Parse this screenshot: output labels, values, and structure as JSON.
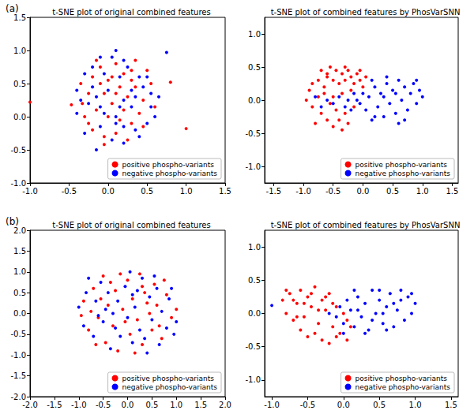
{
  "chart_data": [
    {
      "type": "scatter",
      "annotation": "(a)",
      "title": "t-SNE plot of original combined features",
      "xlim": [
        -1,
        1.5
      ],
      "xticks": [
        {
          "value": -1,
          "label": "-1.0"
        },
        -0.5,
        {
          "value": 0,
          "label": "0.0"
        },
        0.5,
        {
          "value": 1,
          "label": "1.0"
        },
        1.5
      ],
      "ylim": [
        -1,
        1.5
      ],
      "yticks": [
        {
          "value": -1,
          "label": "-1.0"
        },
        -0.5,
        {
          "value": 0,
          "label": "0.0"
        },
        0.5,
        {
          "value": 1,
          "label": "1.0"
        },
        1.5
      ],
      "grid": false,
      "legend": "lower right",
      "marker": "circle",
      "series": [
        {
          "name": "positive phospho-variants",
          "color": "#ff0000",
          "x": [
            -1.0,
            -0.47,
            -0.33,
            0.8,
            1.0,
            -0.2,
            -0.1,
            0.0,
            0.1,
            0.2,
            0.3,
            0.15,
            -0.05,
            0.05,
            0.25,
            0.35,
            0.45,
            0.4,
            0.3,
            0.15,
            0.0,
            -0.15,
            -0.25,
            -0.3,
            -0.2,
            -0.05,
            0.1,
            0.25,
            0.05,
            -0.1,
            0.2,
            0.55,
            0.5,
            -0.35,
            -0.05,
            0.35,
            -0.15,
            0.1,
            0.3,
            -0.25,
            0.45,
            0.6
          ],
          "y": [
            0.22,
            0.18,
            0.2,
            0.52,
            -0.18,
            0.6,
            0.75,
            0.55,
            0.8,
            0.65,
            0.7,
            0.45,
            0.35,
            0.2,
            0.3,
            0.45,
            0.25,
            0.05,
            -0.1,
            -0.05,
            0.0,
            0.1,
            0.35,
            0.0,
            -0.2,
            -0.3,
            -0.25,
            -0.35,
            0.6,
            0.5,
            0.1,
            0.5,
            0.7,
            0.5,
            -0.42,
            0.85,
            0.85,
            0.35,
            0.55,
            -0.1,
            -0.15,
            0.15
          ]
        },
        {
          "name": "negative phospho-variants",
          "color": "#0000ff",
          "x": [
            0.1,
            0.75,
            -0.15,
            0.05,
            0.2,
            -0.3,
            -0.4,
            -0.35,
            -0.2,
            -0.05,
            0.15,
            0.3,
            0.4,
            0.55,
            0.6,
            0.5,
            0.35,
            0.2,
            0.1,
            -0.1,
            0.0,
            0.2,
            0.3,
            -0.25,
            -0.4,
            -0.3,
            -0.1,
            0.05,
            0.2,
            0.4,
            0.45,
            0.25,
            -0.1,
            0.65,
            0.15,
            -0.05,
            0.35,
            -0.2,
            0.5,
            0.1,
            0.55,
            -0.15
          ],
          "y": [
            1.0,
            0.97,
            -0.5,
            0.9,
            0.85,
            0.65,
            0.4,
            0.25,
            0.45,
            0.65,
            0.6,
            0.4,
            0.6,
            0.35,
            0.0,
            -0.1,
            -0.2,
            -0.15,
            0.0,
            0.15,
            0.4,
            0.25,
            0.15,
            0.2,
            0.05,
            -0.25,
            -0.15,
            -0.35,
            -0.4,
            -0.3,
            0.45,
            0.75,
            0.9,
            0.3,
            0.15,
            0.05,
            0.3,
            0.75,
            0.6,
            -0.1,
            0.15,
            0.3
          ]
        }
      ]
    },
    {
      "type": "scatter",
      "title": "t-SNE plot of combined features by PhosVarSNN",
      "xlim": [
        -1.65,
        1.6
      ],
      "xticks": [
        -1.5,
        {
          "value": -1,
          "label": "-1.0"
        },
        -0.5,
        {
          "value": 0,
          "label": "0.0"
        },
        0.5,
        {
          "value": 1,
          "label": "1.0"
        },
        1.5
      ],
      "ylim": [
        -1.25,
        1.25
      ],
      "yticks": [
        {
          "value": -1,
          "label": "-1.0"
        },
        -0.5,
        {
          "value": 0,
          "label": "0.0"
        },
        0.5,
        {
          "value": 1,
          "label": "1.0"
        }
      ],
      "grid": false,
      "legend": "lower right",
      "marker": "circle",
      "series": [
        {
          "name": "positive phospho-variants",
          "color": "#ff0000",
          "x": [
            -0.9,
            -0.95,
            -0.85,
            -0.75,
            -0.7,
            -0.6,
            -0.55,
            -0.5,
            -0.45,
            -0.4,
            -0.35,
            -0.3,
            -0.25,
            -0.2,
            -0.15,
            -0.1,
            -0.05,
            0.0,
            0.05,
            -0.65,
            -0.55,
            -0.7,
            -0.6,
            -0.5,
            -0.4,
            -0.3,
            -0.45,
            -0.35,
            -0.25,
            -0.8,
            -0.85,
            -0.65,
            -0.2,
            -0.35,
            -0.15,
            -0.6,
            -0.3,
            -0.05,
            -0.75,
            -0.5
          ],
          "y": [
            0.15,
            0.0,
            -0.1,
            0.3,
            0.45,
            0.35,
            0.5,
            0.3,
            0.45,
            0.25,
            0.4,
            0.3,
            0.45,
            0.35,
            0.25,
            0.4,
            0.3,
            0.2,
            0.35,
            0.1,
            -0.05,
            -0.2,
            -0.3,
            -0.4,
            -0.3,
            -0.2,
            -0.15,
            -0.45,
            -0.35,
            -0.35,
            0.25,
            0.2,
            0.15,
            0.1,
            -0.1,
            0.4,
            0.5,
            0.45,
            0.05,
            0.05
          ]
        },
        {
          "name": "negative phospho-variants",
          "color": "#0000ff",
          "x": [
            1.0,
            0.95,
            0.9,
            0.85,
            0.8,
            0.75,
            0.7,
            0.65,
            0.6,
            0.55,
            0.5,
            0.45,
            0.4,
            0.35,
            0.3,
            0.25,
            0.2,
            0.15,
            0.1,
            0.05,
            0.0,
            -0.05,
            -0.1,
            -0.15,
            -0.2,
            -0.25,
            -0.3,
            -0.4,
            -0.5,
            -0.6,
            -0.7,
            -0.8,
            0.6,
            0.4,
            0.2,
            0.7,
            0.35,
            0.55,
            0.9,
            0.15
          ],
          "y": [
            0.05,
            0.15,
            -0.05,
            0.25,
            0.1,
            -0.15,
            0.2,
            0.0,
            0.3,
            -0.2,
            0.15,
            -0.05,
            0.25,
            -0.25,
            0.1,
            -0.1,
            0.2,
            -0.3,
            0.05,
            -0.15,
            0.1,
            -0.05,
            0.0,
            0.1,
            -0.15,
            0.0,
            -0.1,
            0.05,
            -0.05,
            0.0,
            -0.1,
            0.05,
            -0.35,
            0.35,
            -0.25,
            -0.3,
            0.05,
            0.1,
            0.3,
            0.3
          ]
        }
      ]
    },
    {
      "type": "scatter",
      "annotation": "(b)",
      "title": "t-SNE plot of original combined features",
      "xlim": [
        -2,
        2
      ],
      "xticks": [
        {
          "value": -2,
          "label": "-2.0"
        },
        -1.5,
        {
          "value": -1,
          "label": "-1.0"
        },
        -0.5,
        {
          "value": 0,
          "label": "0.0"
        },
        0.5,
        {
          "value": 1,
          "label": "1.0"
        },
        1.5,
        {
          "value": 2,
          "label": "2.0"
        }
      ],
      "ylim": [
        -2,
        2
      ],
      "yticks": [
        {
          "value": -2,
          "label": "-2.0"
        },
        -1.5,
        {
          "value": -1,
          "label": "-1.0"
        },
        -0.5,
        {
          "value": 0,
          "label": "0.0"
        },
        0.5,
        {
          "value": 1,
          "label": "1.0"
        },
        1.5,
        {
          "value": 2,
          "label": "2.0"
        }
      ],
      "grid": false,
      "legend": "lower right",
      "marker": "circle",
      "series": [
        {
          "name": "positive phospho-variants",
          "color": "#ff0000",
          "x": [
            -0.9,
            -0.8,
            -0.7,
            -0.6,
            -0.5,
            -0.45,
            -0.4,
            -0.3,
            -0.25,
            -0.2,
            -0.1,
            0.0,
            0.05,
            0.1,
            0.2,
            0.25,
            0.3,
            0.35,
            0.45,
            0.5,
            0.55,
            0.6,
            0.7,
            0.8,
            0.9,
            1.0,
            -0.95,
            -0.65,
            -0.15,
            0.15,
            -0.35,
            0.4,
            -0.55,
            0.65,
            -0.05,
            0.75,
            -0.75,
            0.3
          ],
          "y": [
            0.3,
            -0.4,
            0.6,
            -0.1,
            0.9,
            -0.7,
            0.2,
            -0.3,
            0.55,
            -0.9,
            0.1,
            0.8,
            -0.5,
            0.35,
            -0.15,
            0.95,
            -0.75,
            0.5,
            0.0,
            -0.4,
            0.7,
            0.2,
            -0.6,
            0.45,
            -0.1,
            0.1,
            -0.05,
            -0.75,
            0.95,
            -0.95,
            0.75,
            0.25,
            0.35,
            -0.3,
            -0.2,
            0.8,
            0.05,
            0.65
          ]
        },
        {
          "name": "negative phospho-variants",
          "color": "#0000ff",
          "x": [
            -1.0,
            -0.9,
            -0.85,
            -0.7,
            -0.65,
            -0.55,
            -0.5,
            -0.4,
            -0.35,
            -0.3,
            -0.2,
            -0.15,
            -0.05,
            0.0,
            0.05,
            0.1,
            0.15,
            0.25,
            0.3,
            0.4,
            0.45,
            0.5,
            0.6,
            0.65,
            0.7,
            0.8,
            0.85,
            0.95,
            1.0,
            -0.8,
            -0.25,
            0.2,
            0.55,
            -0.6,
            0.35,
            -0.45,
            0.9,
            0.1
          ],
          "y": [
            0.15,
            -0.3,
            0.5,
            -0.55,
            0.3,
            0.75,
            -0.2,
            0.5,
            -0.85,
            0.0,
            0.3,
            -0.55,
            0.65,
            -0.1,
            1.0,
            -0.7,
            0.15,
            -0.4,
            0.85,
            -0.95,
            0.4,
            -0.15,
            0.6,
            -0.75,
            0.05,
            -0.35,
            0.35,
            -0.5,
            -0.2,
            0.85,
            -0.35,
            0.55,
            0.9,
            -0.05,
            -0.6,
            0.1,
            0.6,
            0.45
          ]
        }
      ]
    },
    {
      "type": "scatter",
      "title": "t-SNE plot of combined features by PhosVarSNN",
      "xlim": [
        -1.1,
        1.6
      ],
      "xticks": [
        {
          "value": -1,
          "label": "-1.0"
        },
        -0.5,
        {
          "value": 0,
          "label": "0.0"
        },
        0.5,
        {
          "value": 1,
          "label": "1.0"
        },
        1.5
      ],
      "ylim": [
        -1.25,
        1.25
      ],
      "yticks": [
        {
          "value": -1,
          "label": "-1.0"
        },
        -0.5,
        {
          "value": 0,
          "label": "0.0"
        },
        0.5,
        {
          "value": 1,
          "label": "1.0"
        }
      ],
      "grid": false,
      "legend": "lower right",
      "marker": "circle",
      "series": [
        {
          "name": "positive phospho-variants",
          "color": "#ff0000",
          "x": [
            -0.85,
            -0.8,
            -0.75,
            -0.7,
            -0.65,
            -0.6,
            -0.55,
            -0.5,
            -0.45,
            -0.4,
            -0.35,
            -0.3,
            -0.25,
            -0.2,
            -0.15,
            -0.1,
            -0.05,
            0.0,
            0.05,
            -0.6,
            -0.5,
            -0.4,
            -0.3,
            -0.2,
            -0.1,
            0.05,
            -0.7,
            -0.45,
            -0.25,
            -0.35,
            -0.15,
            -0.55,
            0.1,
            -0.8,
            -0.65
          ],
          "y": [
            0.2,
            0.0,
            0.3,
            -0.1,
            0.15,
            0.35,
            -0.05,
            0.25,
            0.1,
            0.4,
            -0.15,
            0.2,
            0.05,
            0.3,
            -0.2,
            0.1,
            -0.3,
            0.0,
            -0.1,
            -0.25,
            -0.35,
            -0.3,
            -0.4,
            -0.45,
            -0.35,
            -0.4,
            0.2,
            0.3,
            0.25,
            0.05,
            0.15,
            0.15,
            -0.2,
            0.35,
            -0.05
          ]
        },
        {
          "name": "negative phospho-variants",
          "color": "#0000ff",
          "x": [
            -1.0,
            1.0,
            0.95,
            0.9,
            0.85,
            0.8,
            0.75,
            0.7,
            0.65,
            0.6,
            0.55,
            0.5,
            0.45,
            0.4,
            0.35,
            0.3,
            0.25,
            0.2,
            0.15,
            0.1,
            0.05,
            0.0,
            -0.05,
            0.0,
            -0.1,
            0.3,
            0.6,
            0.5,
            0.8,
            0.2,
            0.4,
            0.7,
            0.95,
            0.15,
            0.55,
            -0.2
          ],
          "y": [
            0.12,
            0.15,
            0.0,
            0.25,
            -0.1,
            0.2,
            0.05,
            -0.2,
            0.3,
            0.1,
            -0.15,
            0.2,
            0.0,
            0.35,
            -0.25,
            0.15,
            -0.05,
            0.25,
            -0.2,
            0.05,
            0.2,
            -0.15,
            0.1,
            -0.3,
            -0.05,
            -0.3,
            -0.25,
            0.35,
            0.35,
            0.05,
            -0.1,
            0.15,
            0.3,
            0.35,
            0.0,
            0.0
          ]
        }
      ]
    }
  ]
}
